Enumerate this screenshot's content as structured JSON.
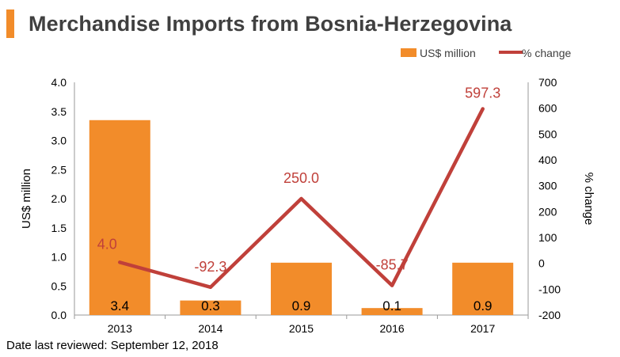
{
  "header": {
    "title": "Merchandise Imports from Bosnia-Herzegovina"
  },
  "footer": {
    "note": "Date last reviewed: September 12, 2018"
  },
  "colors": {
    "bar": "#f28c2a",
    "line": "#c0403a",
    "title": "#404040",
    "axis": "#9a9a9a"
  },
  "chart_data": {
    "type": "bar",
    "title": "Merchandise Imports from Bosnia-Herzegovina",
    "categories": [
      "2013",
      "2014",
      "2015",
      "2016",
      "2017"
    ],
    "series": [
      {
        "name": "US$ million",
        "type": "bar",
        "axis": "left",
        "values": [
          3.35,
          0.25,
          0.9,
          0.12,
          0.9
        ],
        "labels": [
          "3.4",
          "0.3",
          "0.9",
          "0.1",
          "0.9"
        ]
      },
      {
        "name": "% change",
        "type": "line",
        "axis": "right",
        "values": [
          4.0,
          -92.3,
          250.0,
          -85.7,
          597.3
        ],
        "labels": [
          "4.0",
          "-92.3",
          "250.0",
          "-85.7",
          "597.3"
        ]
      }
    ],
    "ylabel_left": "US$ million",
    "ylabel_right": "% change",
    "ylim_left": [
      0,
      4.0
    ],
    "ylim_right": [
      -200,
      700
    ],
    "yticks_left": [
      "4.0",
      "3.5",
      "3.0",
      "2.5",
      "2.0",
      "1.5",
      "1.0",
      "0.5",
      "0.0"
    ],
    "yticks_right": [
      "700",
      "600",
      "500",
      "400",
      "300",
      "200",
      "100",
      "0",
      "-100",
      "-200"
    ],
    "grid": false,
    "legend": "top-right"
  }
}
